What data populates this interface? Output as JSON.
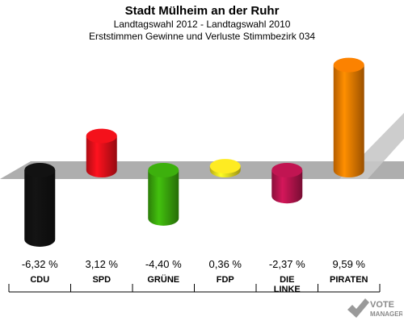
{
  "title": "Stadt Mülheim an der Ruhr",
  "subtitle1": "Landtagswahl 2012 - Landtagswahl 2010",
  "subtitle2": "Erststimmen Gewinne und Verluste Stimmbezirk 034",
  "watermark": {
    "line1": "VOTE",
    "line2": "MANAGER"
  },
  "chart_data": {
    "type": "bar",
    "categories": [
      "CDU",
      "SPD",
      "GRÜNE",
      "FDP",
      "DIE LINKE",
      "PIRATEN"
    ],
    "values": [
      -6.32,
      3.12,
      -4.4,
      0.36,
      -2.37,
      9.59
    ],
    "value_labels": [
      "-6,32 %",
      "3,12 %",
      "-4,40 %",
      "0,36 %",
      "-2,37 %",
      "9,59 %"
    ],
    "colors": [
      "#111111",
      "#e8101a",
      "#3aa80c",
      "#f2e020",
      "#b8144e",
      "#f07c00"
    ],
    "baseline": 0,
    "grid": false,
    "legend": "none"
  }
}
